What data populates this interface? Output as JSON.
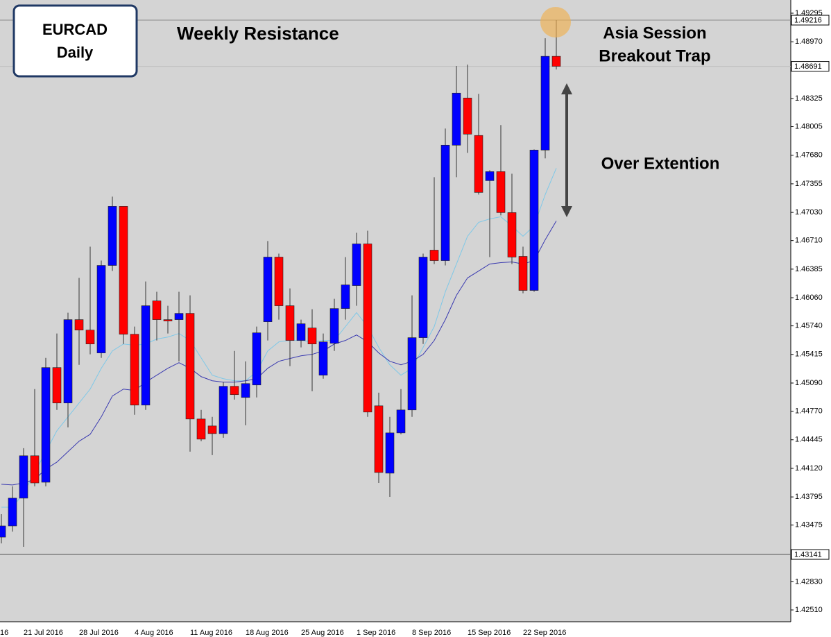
{
  "chart_data": {
    "type": "candlestick",
    "title": "EURCAD",
    "timeframe": "Daily",
    "annotations": [
      "Weekly Resistance",
      "Asia Session",
      "Breakout Trap",
      "Over Extention"
    ],
    "x_edge_label": "16",
    "categories": [
      null,
      null,
      "21 Jul 2016",
      null,
      null,
      null,
      null,
      "28 Jul 2016",
      null,
      null,
      null,
      null,
      "4 Aug 2016",
      null,
      null,
      null,
      null,
      "11 Aug 2016",
      null,
      null,
      null,
      null,
      "18 Aug 2016",
      null,
      null,
      null,
      null,
      "25 Aug 2016",
      null,
      null,
      null,
      null,
      "1 Sep 2016",
      null,
      null,
      null,
      null,
      "8 Sep 2016",
      null,
      null,
      null,
      null,
      "15 Sep 2016",
      null,
      null,
      null,
      null,
      "22 Sep 2016",
      null,
      null,
      null
    ],
    "open": [
      1.43338,
      1.43465,
      1.43781,
      1.44263,
      1.43962,
      1.45266,
      1.44863,
      1.45811,
      1.45692,
      1.45432,
      1.46427,
      1.47099,
      1.45645,
      1.44839,
      1.46024,
      1.45811,
      1.45811,
      1.45882,
      1.44681,
      1.44602,
      1.44515,
      1.45053,
      1.44926,
      1.45068,
      1.45787,
      1.46522,
      1.45969,
      1.45574,
      1.45716,
      1.45179,
      1.45542,
      1.45937,
      1.46198,
      1.46672,
      1.44831,
      1.44065,
      1.44523,
      1.44784,
      1.45606,
      1.46601,
      1.46482,
      1.47794,
      1.48331,
      1.47905,
      1.47391,
      1.47494,
      1.47028,
      1.4653,
      1.46143,
      1.47739,
      1.48805
    ],
    "high": [
      1.43599,
      1.43915,
      1.44349,
      1.45021,
      1.45376,
      1.45653,
      1.4589,
      1.46285,
      1.4664,
      1.46482,
      1.47209,
      1.47099,
      1.45732,
      1.46245,
      1.46127,
      1.45969,
      1.46127,
      1.46087,
      1.44784,
      1.44705,
      1.451,
      1.45455,
      1.45337,
      1.45732,
      1.46704,
      1.46561,
      1.46166,
      1.45811,
      1.45929,
      1.45653,
      1.46048,
      1.46522,
      1.46798,
      1.46822,
      1.44981,
      1.44705,
      1.45021,
      1.46087,
      1.46561,
      1.4743,
      1.47983,
      1.48695,
      1.4871,
      1.48378,
      1.47509,
      1.48023,
      1.4747,
      1.4664,
      1.47746,
      1.4901,
      1.49216
    ],
    "low": [
      1.43267,
      1.43401,
      1.43228,
      1.43915,
      1.43915,
      1.44784,
      1.44586,
      1.45297,
      1.45416,
      1.45376,
      1.46364,
      1.45534,
      1.44729,
      1.44784,
      1.45574,
      1.45653,
      1.45337,
      1.4431,
      1.44428,
      1.4427,
      1.44468,
      1.44902,
      1.4461,
      1.44926,
      1.45574,
      1.45811,
      1.45282,
      1.45495,
      1.44997,
      1.45139,
      1.45455,
      1.45811,
      1.45969,
      1.44705,
      1.43954,
      1.43796,
      1.44507,
      1.44705,
      1.45534,
      1.46443,
      1.46427,
      1.4743,
      1.47707,
      1.47233,
      1.46522,
      1.46996,
      1.46443,
      1.46111,
      1.46127,
      1.47644,
      1.48655
    ],
    "close": [
      1.43465,
      1.43781,
      1.44263,
      1.43954,
      1.45266,
      1.44863,
      1.45811,
      1.45692,
      1.45534,
      1.46427,
      1.47099,
      1.45645,
      1.44839,
      1.45969,
      1.45811,
      1.45795,
      1.45882,
      1.44681,
      1.44452,
      1.44515,
      1.45053,
      1.44958,
      1.45084,
      1.45661,
      1.46522,
      1.45969,
      1.45574,
      1.45764,
      1.45534,
      1.45558,
      1.45937,
      1.46206,
      1.46672,
      1.4476,
      1.44073,
      1.44523,
      1.44784,
      1.45606,
      1.46522,
      1.46482,
      1.47794,
      1.48386,
      1.4792,
      1.47257,
      1.47494,
      1.47028,
      1.46522,
      1.46143,
      1.47739,
      1.48805,
      1.48691
    ],
    "up_color": "#0000ff",
    "down_color": "#ff0000",
    "moving_averages": [
      {
        "color": "#7ec8e8",
        "values": [
          1.43678,
          1.43678,
          1.43836,
          1.44073,
          1.4431,
          1.44547,
          1.44705,
          1.44863,
          1.45021,
          1.45258,
          1.45455,
          1.45534,
          1.45519,
          1.45534,
          1.4559,
          1.45613,
          1.45653,
          1.45574,
          1.45376,
          1.45179,
          1.45139,
          1.45116,
          1.45116,
          1.45218,
          1.45455,
          1.45558,
          1.45574,
          1.45574,
          1.45558,
          1.45574,
          1.45574,
          1.45732,
          1.4589,
          1.45732,
          1.45495,
          1.45297,
          1.45179,
          1.45258,
          1.45495,
          1.45732,
          1.46127,
          1.46443,
          1.46759,
          1.46917,
          1.46956,
          1.4698,
          1.46877,
          1.46759,
          1.46877,
          1.47233,
          1.47533
        ]
      },
      {
        "color": "#3a3ab0",
        "values": [
          1.43939,
          1.43931,
          1.43954,
          1.43994,
          1.44112,
          1.44191,
          1.4431,
          1.44428,
          1.44507,
          1.44705,
          1.44942,
          1.45021,
          1.45005,
          1.451,
          1.45179,
          1.45258,
          1.45321,
          1.45258,
          1.45163,
          1.45116,
          1.451,
          1.451,
          1.45116,
          1.45139,
          1.45258,
          1.45337,
          1.45369,
          1.454,
          1.45416,
          1.45455,
          1.45534,
          1.45574,
          1.45637,
          1.45558,
          1.45432,
          1.45337,
          1.45297,
          1.45337,
          1.45416,
          1.45574,
          1.45811,
          1.46087,
          1.46285,
          1.46364,
          1.46443,
          1.46459,
          1.46467,
          1.46443,
          1.46482,
          1.46719,
          1.46933
        ]
      }
    ],
    "price_lines": [
      {
        "value": 1.49216,
        "color": "#8a8a8a"
      },
      {
        "value": 1.48691,
        "color": "#bdbdbd"
      },
      {
        "value": 1.43141,
        "color": "#555555"
      }
    ],
    "ylim": [
      1.42376,
      1.49445
    ],
    "yticks": [
      1.49295,
      {
        "value": 1.4897,
        "label": "1.48970"
      },
      1.48325,
      1.48005,
      {
        "value": 1.4768,
        "label": "1.47680"
      },
      1.47355,
      {
        "value": 1.4703,
        "label": "1.47030"
      },
      {
        "value": 1.4671,
        "label": "1.46710"
      },
      1.46385,
      {
        "value": 1.4606,
        "label": "1.46060"
      },
      {
        "value": 1.4574,
        "label": "1.45740"
      },
      1.45415,
      {
        "value": 1.4509,
        "label": "1.45090"
      },
      {
        "value": 1.4477,
        "label": "1.44770"
      },
      1.44445,
      {
        "value": 1.4412,
        "label": "1.44120"
      },
      1.43795,
      1.43475,
      {
        "value": 1.4283,
        "label": "1.42830"
      },
      {
        "value": 1.4251,
        "label": "1.42510"
      }
    ]
  }
}
